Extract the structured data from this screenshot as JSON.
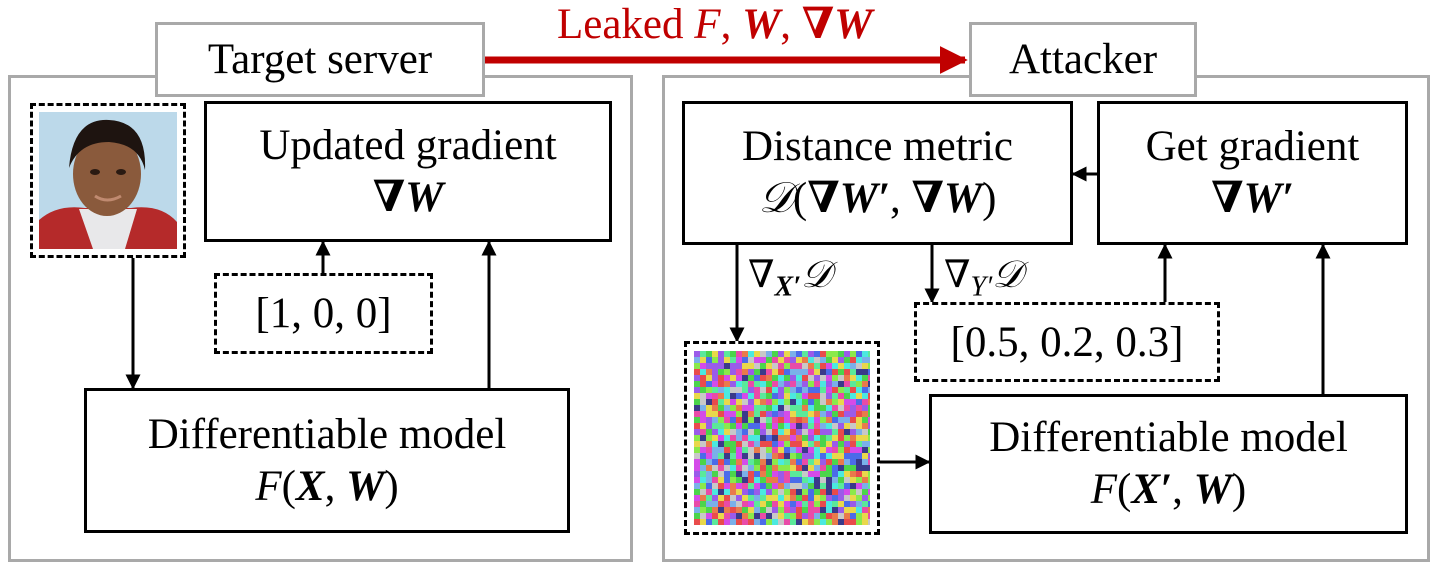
{
  "leak_label": {
    "prefix": "Leaked ",
    "F": "F",
    "comma1": ", ",
    "W": "W",
    "comma2": ", ",
    "grad": "∇W",
    "color": "#c00000"
  },
  "server": {
    "title": "Target server",
    "gradient_box": {
      "line1": "Updated gradient",
      "line2": "∇W"
    },
    "label_vector": "[1, 0, 0]",
    "model_box": {
      "line1": "Differentiable model",
      "F": "F",
      "open": "(",
      "X": "X",
      "comma": ", ",
      "W": "W",
      "close": ")"
    }
  },
  "attacker": {
    "title": "Attacker",
    "distance_box": {
      "line1": "Distance metric",
      "D": "𝒟",
      "open": "(",
      "g1": "∇W′",
      "comma": ", ",
      "g2": "∇W",
      "close": ")"
    },
    "get_gradient_box": {
      "line1": "Get gradient",
      "line2": "∇W′"
    },
    "grad_x_label": {
      "nabla": "∇",
      "sub": "X′",
      "D": "𝒟"
    },
    "grad_y_label": {
      "nabla": "∇",
      "sub": "Y′",
      "D": "𝒟"
    },
    "label_vector": "[0.5, 0.2, 0.3]",
    "model_box": {
      "line1": "Differentiable model",
      "F": "F",
      "open": "(",
      "X": "X′",
      "comma": ", ",
      "W": "W",
      "close": ")"
    }
  },
  "colors": {
    "panel_border": "#a9a9a9",
    "arrow": "#000000",
    "leak_arrow": "#c00000"
  },
  "icons": {
    "face": "face-photo-icon",
    "noise": "random-noise-image-icon"
  }
}
